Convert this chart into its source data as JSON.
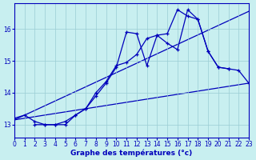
{
  "xlabel": "Graphe des températures (°c)",
  "xlim": [
    0,
    23
  ],
  "ylim": [
    12.6,
    16.8
  ],
  "bg_color": "#c8eff0",
  "grid_color": "#9acdd4",
  "line_color": "#0000bb",
  "series": {
    "curve1_x": [
      0,
      1,
      2,
      3,
      4,
      5,
      6,
      7,
      8,
      9,
      10,
      11,
      12,
      13,
      14,
      15,
      16,
      17,
      18,
      19,
      20,
      21
    ],
    "curve1_y": [
      13.2,
      13.3,
      13.1,
      13.0,
      13.0,
      13.1,
      13.3,
      13.5,
      13.9,
      14.3,
      14.8,
      15.9,
      15.85,
      14.85,
      15.8,
      15.55,
      15.35,
      16.6,
      16.3,
      15.3,
      14.8,
      14.75
    ],
    "curve2_x": [
      2,
      3,
      4,
      5,
      6,
      7,
      8,
      9,
      10,
      11,
      12,
      13,
      14,
      15,
      16,
      17,
      18,
      19,
      20,
      21,
      22,
      23
    ],
    "curve2_y": [
      13.0,
      13.0,
      13.0,
      13.0,
      13.3,
      13.5,
      14.0,
      14.35,
      14.85,
      14.95,
      15.2,
      15.7,
      15.8,
      15.85,
      16.6,
      16.4,
      16.3,
      15.3,
      14.8,
      14.75,
      14.7,
      14.3
    ],
    "trend1_x": [
      0,
      23
    ],
    "trend1_y": [
      13.15,
      14.3
    ],
    "trend2_x": [
      0,
      23
    ],
    "trend2_y": [
      13.15,
      16.55
    ]
  }
}
